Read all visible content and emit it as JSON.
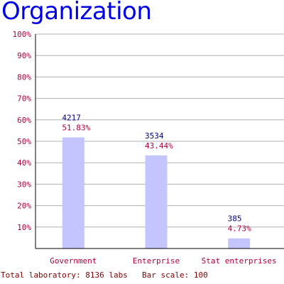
{
  "chart_data": {
    "type": "bar",
    "title": "Organization",
    "categories": [
      "Government",
      "Enterprise",
      "Stat enterprises"
    ],
    "counts": [
      "4217",
      "3534",
      "385"
    ],
    "values": [
      51.83,
      43.44,
      4.73
    ],
    "value_labels": [
      "51.83%",
      "43.44%",
      "4.73%"
    ],
    "ylim": [
      0,
      100
    ],
    "yticks": [
      "10%",
      "20%",
      "30%",
      "40%",
      "50%",
      "60%",
      "70%",
      "80%",
      "90%",
      "100%"
    ],
    "grid": true
  },
  "footer": {
    "total": "Total laboratory: 8136 labs",
    "scale": "Bar scale: 100"
  },
  "colors": {
    "title": "#0000e6",
    "bar": "#c4c4ff",
    "grid": "#b0b0b0",
    "axis": "#000000",
    "count_text": "#000080",
    "pct_text": "#b3003b"
  }
}
